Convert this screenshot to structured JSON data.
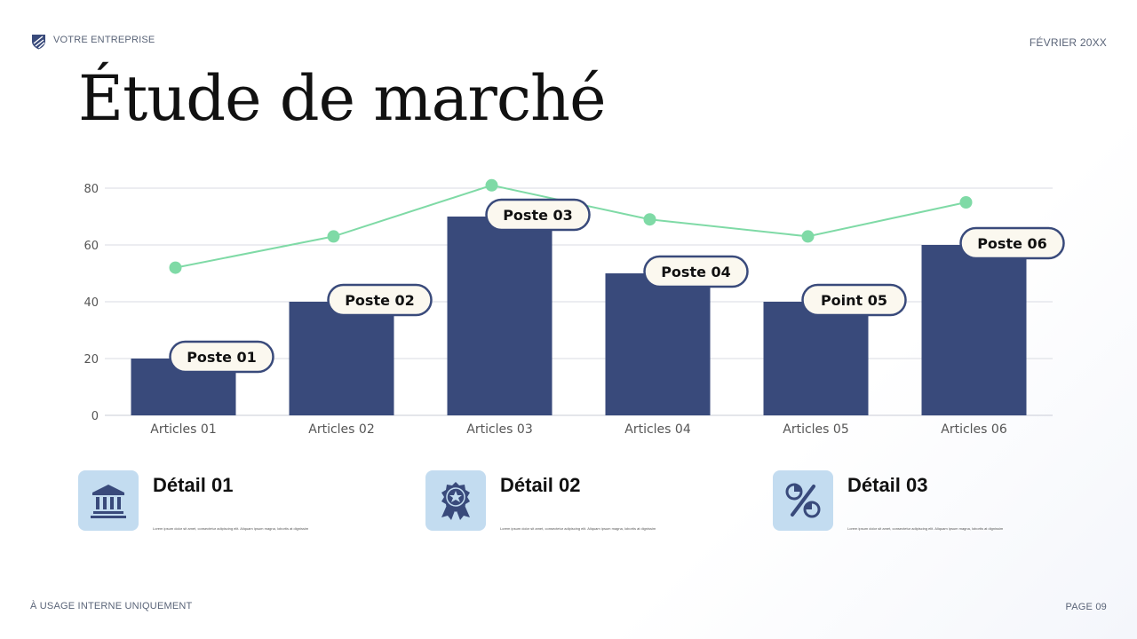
{
  "header": {
    "company": "VOTRE ENTREPRISE",
    "date": "FÉVRIER 20XX",
    "logo_icon": "shield-logo-icon"
  },
  "title": "Étude de marché",
  "chart_data": {
    "type": "bar",
    "categories": [
      "Articles 01",
      "Articles 02",
      "Articles 03",
      "Articles 04",
      "Articles 05",
      "Articles 06"
    ],
    "series": [
      {
        "type": "bar",
        "values": [
          20,
          40,
          70,
          50,
          40,
          60
        ],
        "color": "#394a7b"
      },
      {
        "type": "line",
        "values": [
          52,
          63,
          81,
          69,
          63,
          75
        ],
        "color": "#7fdaa6"
      }
    ],
    "bar_labels": [
      "Poste 01",
      "Poste 02",
      "Poste 03",
      "Poste 04",
      "Point 05",
      "Poste 06"
    ],
    "yticks": [
      0,
      20,
      40,
      60,
      80
    ],
    "ylim": [
      0,
      80
    ],
    "grid": true
  },
  "details": [
    {
      "title": "Détail 01",
      "text": "Lorem ipsum dolor sit amet, consectetur adipiscing elit. Aliquam ipsum magna, lobortis at dignissim",
      "icon": "bank-icon"
    },
    {
      "title": "Détail 02",
      "text": "Lorem ipsum dolor sit amet, consectetur adipiscing elit. Aliquam ipsum magna, lobortis at dignissim",
      "icon": "award-badge-icon"
    },
    {
      "title": "Détail 03",
      "text": "Lorem ipsum dolor sit amet, consectetur adipiscing elit. Aliquam ipsum magna, lobortis at dignissim",
      "icon": "percent-chart-icon"
    }
  ],
  "footer": {
    "left": "À USAGE INTERNE UNIQUEMENT",
    "right": "PAGE 09"
  },
  "colors": {
    "bar": "#394a7b",
    "line": "#7fdaa6",
    "icon_bg": "#c3dcf0",
    "label_fill": "#fbf8ef",
    "label_border": "#394a7b"
  }
}
